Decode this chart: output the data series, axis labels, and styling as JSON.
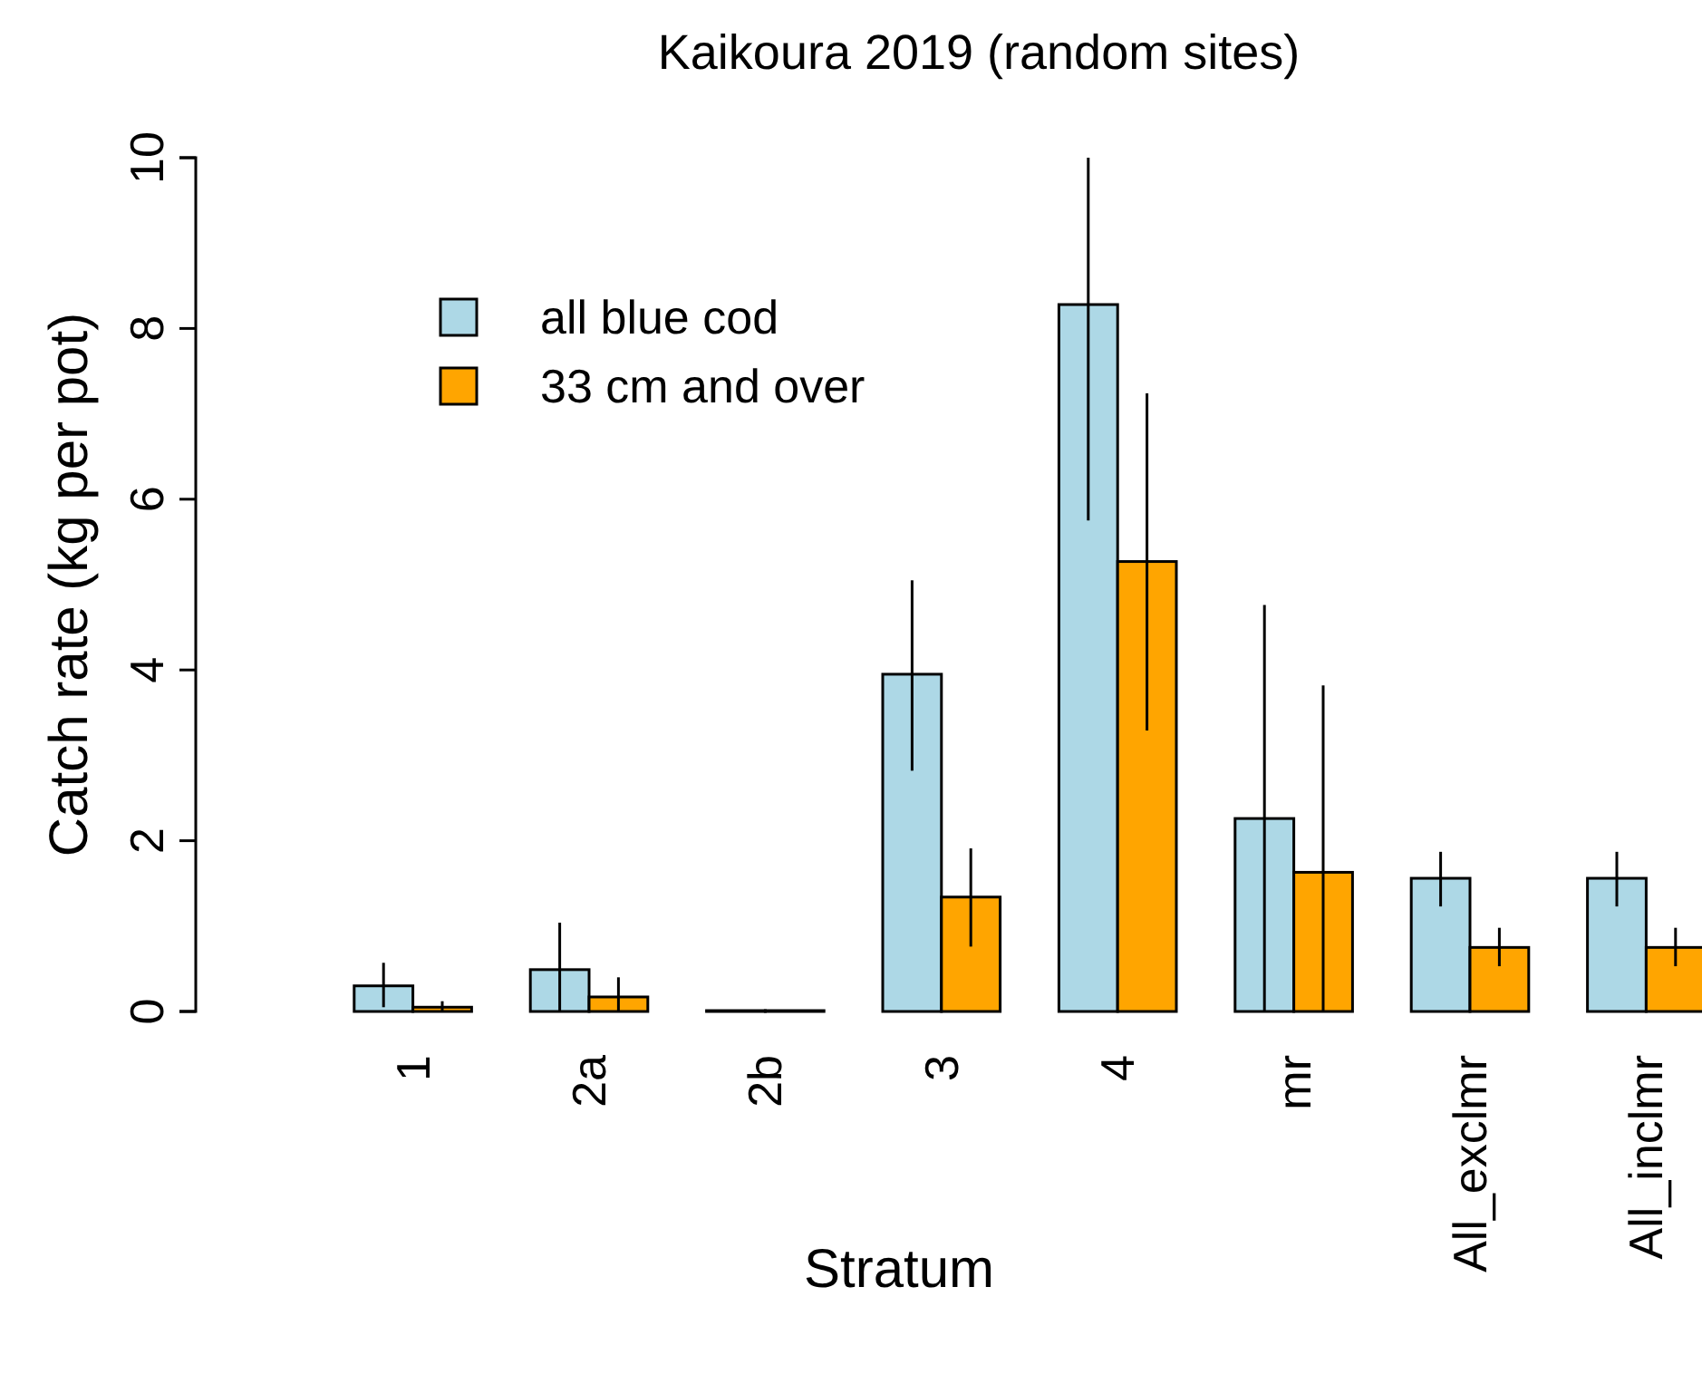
{
  "chart_data": {
    "type": "bar",
    "title": "Kaikoura 2019 (random sites)",
    "xlabel": "Stratum",
    "ylabel": "Catch rate (kg per pot)",
    "categories": [
      "1",
      "2a",
      "2b",
      "3",
      "4",
      "mr",
      "All_exclmr",
      "All_inclmr"
    ],
    "series": [
      {
        "name": "all blue cod",
        "color": "#add8e6",
        "values": [
          0.3,
          0.49,
          0.01,
          3.95,
          8.28,
          2.26,
          1.56,
          1.56
        ],
        "errors": [
          [
            0.05,
            0.57
          ],
          [
            0,
            1.04
          ],
          null,
          [
            2.82,
            5.05
          ],
          [
            5.75,
            10
          ],
          [
            0,
            4.76
          ],
          [
            1.23,
            1.87
          ],
          [
            1.23,
            1.87
          ]
        ]
      },
      {
        "name": "33 cm and over",
        "color": "#ffa500",
        "values": [
          0.05,
          0.17,
          0.01,
          1.34,
          5.27,
          1.63,
          0.75,
          0.75
        ],
        "errors": [
          [
            0,
            0.12
          ],
          [
            0,
            0.4
          ],
          null,
          [
            0.76,
            1.91
          ],
          [
            3.29,
            7.24
          ],
          [
            0,
            3.82
          ],
          [
            0.53,
            0.98
          ],
          [
            0.53,
            0.98
          ]
        ]
      }
    ],
    "ylim": [
      0,
      10
    ],
    "yticks": [
      0,
      2,
      4,
      6,
      8,
      10
    ],
    "legend": "top left"
  }
}
